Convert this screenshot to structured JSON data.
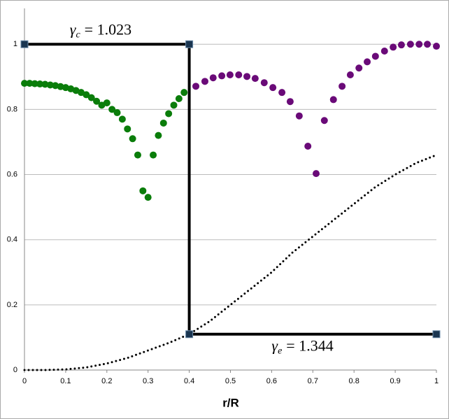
{
  "chart_data": {
    "type": "scatter",
    "xlabel": "r/R",
    "xlim": [
      0,
      1
    ],
    "ylim": [
      0,
      1.11
    ],
    "xticks": [
      0,
      0.1,
      0.2,
      0.3,
      0.4,
      0.5,
      0.6,
      0.7,
      0.8,
      0.9,
      1
    ],
    "yticks": [
      0,
      0.2,
      0.4,
      0.6,
      0.8,
      1
    ],
    "grid": true,
    "annotations": [
      {
        "symbol": "γ",
        "subscript": "c",
        "text": "= 1.023",
        "x": 0.11,
        "y": 1.04
      },
      {
        "symbol": "γ",
        "subscript": "e",
        "text": "= 1.344",
        "x": 0.6,
        "y": 0.07
      }
    ],
    "series": [
      {
        "mode": "markers",
        "color": "#0a7d0a",
        "x": [
          0,
          0.0125,
          0.025,
          0.0375,
          0.05,
          0.0625,
          0.075,
          0.0875,
          0.1,
          0.1125,
          0.125,
          0.1375,
          0.15,
          0.1625,
          0.175,
          0.1875,
          0.2,
          0.2125,
          0.225,
          0.2375,
          0.25,
          0.2625,
          0.275,
          0.2875,
          0.3,
          0.3125,
          0.325,
          0.3375,
          0.35,
          0.3625,
          0.375,
          0.3875
        ],
        "values": [
          0.88,
          0.88,
          0.879,
          0.878,
          0.877,
          0.875,
          0.873,
          0.87,
          0.867,
          0.863,
          0.858,
          0.852,
          0.845,
          0.836,
          0.825,
          0.813,
          0.82,
          0.8,
          0.79,
          0.77,
          0.74,
          0.71,
          0.66,
          0.55,
          0.53,
          0.66,
          0.72,
          0.758,
          0.787,
          0.813,
          0.833,
          0.852
        ]
      },
      {
        "mode": "markers",
        "color": "#6a0a78",
        "x": [
          0.416,
          0.438,
          0.458,
          0.479,
          0.499,
          0.52,
          0.54,
          0.56,
          0.582,
          0.603,
          0.625,
          0.645,
          0.667,
          0.688,
          0.708,
          0.728,
          0.75,
          0.771,
          0.791,
          0.812,
          0.832,
          0.852,
          0.874,
          0.895,
          0.915,
          0.937,
          0.958,
          0.978,
          1
        ],
        "values": [
          0.871,
          0.886,
          0.897,
          0.903,
          0.906,
          0.906,
          0.901,
          0.895,
          0.882,
          0.867,
          0.852,
          0.824,
          0.78,
          0.687,
          0.603,
          0.766,
          0.83,
          0.871,
          0.906,
          0.927,
          0.946,
          0.963,
          0.979,
          0.991,
          0.998,
          1,
          1,
          1,
          0.994
        ]
      },
      {
        "mode": "dotted",
        "color": "#000000",
        "x": [
          0,
          0.05,
          0.1,
          0.15,
          0.2,
          0.25,
          0.3,
          0.35,
          0.4,
          0.45,
          0.5,
          0.55,
          0.6,
          0.65,
          0.7,
          0.75,
          0.8,
          0.85,
          0.9,
          0.95,
          1
        ],
        "values": [
          0,
          0,
          0.002,
          0.008,
          0.02,
          0.037,
          0.06,
          0.083,
          0.11,
          0.15,
          0.2,
          0.25,
          0.3,
          0.36,
          0.41,
          0.46,
          0.51,
          0.56,
          0.6,
          0.635,
          0.66
        ]
      },
      {
        "mode": "line-markers",
        "color": "#000000",
        "marker_color": "#1a3550",
        "x": [
          0,
          0.4,
          0.4,
          1
        ],
        "values": [
          1,
          1,
          0.11,
          0.11
        ]
      }
    ]
  }
}
